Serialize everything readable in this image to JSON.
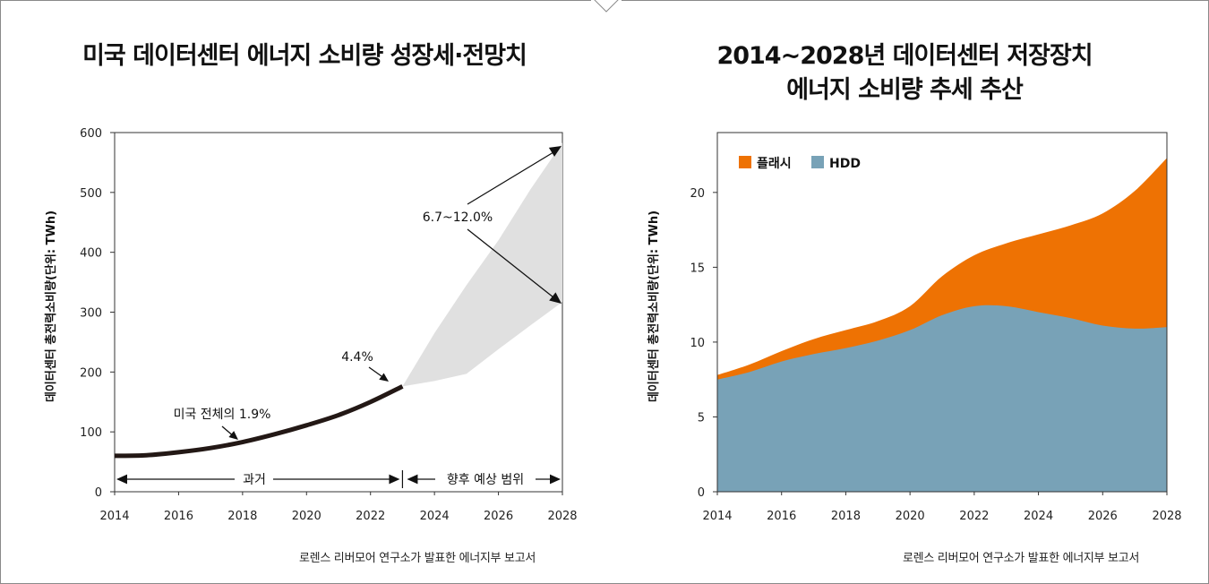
{
  "left_panel": {
    "title": "미국 데이터센터 에너지 소비량 성장세·전망치",
    "source": "로렌스 리버모어 연구소가 발표한 에너지부 보고서"
  },
  "right_panel": {
    "title_line1": "2014~2028년 데이터센터 저장장치",
    "title_line2": "에너지 소비량 추세 추산",
    "source": "로렌스 리버모어 연구소가 발표한 에너지부 보고서"
  },
  "colors": {
    "history_line": "#231815",
    "projection_band": "#e0e0e0",
    "flash": "#ee7203",
    "hdd": "#78a2b7",
    "frame": "#8a8a8a"
  },
  "chart_data": [
    {
      "type": "line",
      "title": "미국 데이터센터 에너지 소비량 성장세·전망치",
      "ylabel": "데이터센터 총전력소비량(단위: TWh)",
      "xlim": [
        2014,
        2028
      ],
      "ylim": [
        0,
        600
      ],
      "x_ticks": [
        2014,
        2016,
        2018,
        2020,
        2022,
        2024,
        2026,
        2028
      ],
      "y_ticks": [
        0,
        100,
        200,
        300,
        400,
        500,
        600
      ],
      "grid": false,
      "series": [
        {
          "x": [
            2014,
            2015,
            2016,
            2017,
            2018,
            2019,
            2020,
            2021,
            2022,
            2023
          ],
          "values": [
            60,
            61,
            66,
            73,
            83,
            96,
            111,
            128,
            150,
            176
          ]
        }
      ],
      "projection_band": {
        "x": [
          2023,
          2024,
          2025,
          2026,
          2027,
          2028
        ],
        "upper": [
          176,
          265,
          345,
          420,
          505,
          583
        ],
        "lower": [
          176,
          185,
          197,
          238,
          278,
          317
        ]
      },
      "annotations": {
        "total_growth": "미국 전체의 1.9%",
        "recent_growth": "4.4%",
        "projected_growth": "6.7~12.0%",
        "past_label": "과거",
        "future_label": "향후 예상 범위"
      }
    },
    {
      "type": "area",
      "title": "2014~2028년 데이터센터 저장장치 에너지 소비량 추세 추산",
      "ylabel": "데이터센터 총전력소비량(단위: TWh)",
      "xlim": [
        2014,
        2028
      ],
      "ylim": [
        0,
        24
      ],
      "x_ticks": [
        2014,
        2016,
        2018,
        2020,
        2022,
        2024,
        2026,
        2028
      ],
      "y_ticks": [
        0,
        5,
        10,
        15,
        20
      ],
      "grid": false,
      "legend_position": "top-left",
      "x": [
        2014,
        2015,
        2016,
        2017,
        2018,
        2019,
        2020,
        2021,
        2022,
        2023,
        2024,
        2025,
        2026,
        2027,
        2028
      ],
      "series": [
        {
          "name": "HDD",
          "values": [
            7.5,
            8.0,
            8.7,
            9.2,
            9.6,
            10.1,
            10.8,
            11.8,
            12.4,
            12.4,
            12.0,
            11.6,
            11.1,
            10.9,
            11.0
          ]
        },
        {
          "name": "플래시",
          "values": [
            0.3,
            0.5,
            0.7,
            1.0,
            1.2,
            1.3,
            1.6,
            2.6,
            3.4,
            4.2,
            5.2,
            6.2,
            7.5,
            9.2,
            11.3
          ]
        }
      ]
    }
  ]
}
